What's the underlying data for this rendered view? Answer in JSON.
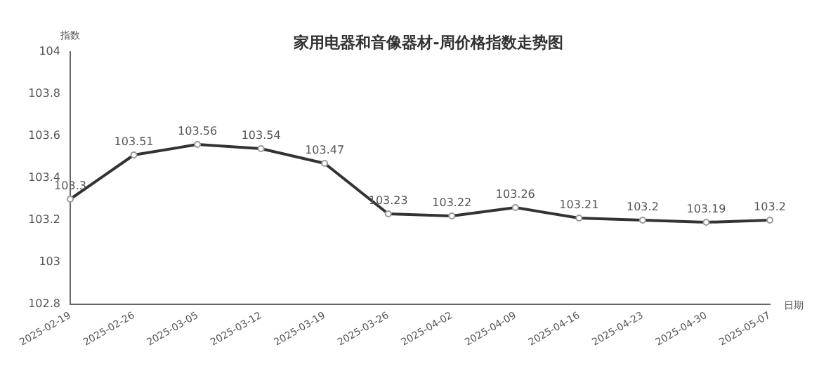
{
  "chart_data": {
    "type": "line",
    "title": "家用电器和音像器材-周价格指数走势图",
    "xlabel": "日期",
    "ylabel": "指数",
    "categories": [
      "2025-02-19",
      "2025-02-26",
      "2025-03-05",
      "2025-03-12",
      "2025-03-19",
      "2025-03-26",
      "2025-04-02",
      "2025-04-09",
      "2025-04-16",
      "2025-04-23",
      "2025-04-30",
      "2025-05-07"
    ],
    "series": [
      {
        "color": "#333333",
        "values": [
          103.3,
          103.51,
          103.56,
          103.54,
          103.47,
          103.23,
          103.22,
          103.26,
          103.21,
          103.2,
          103.19,
          103.2
        ]
      }
    ],
    "ylim": [
      102.8,
      104
    ],
    "yticks": [
      102.8,
      103,
      103.2,
      103.4,
      103.6,
      103.8,
      104
    ],
    "data_labels": true,
    "grid": false,
    "legend": false,
    "marker": "circle",
    "line_style": "solid"
  }
}
